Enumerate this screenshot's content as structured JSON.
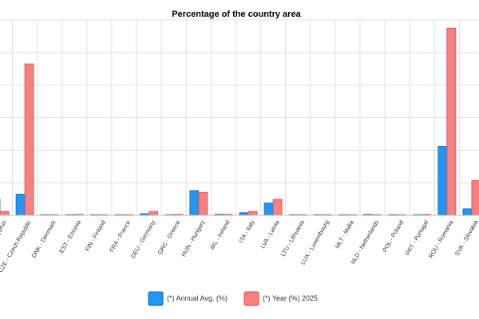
{
  "chart_data": {
    "type": "bar",
    "title": "Percentage of the country area",
    "categories": [
      "CYP - Cyprus",
      "CZE - Czech Republic",
      "DNK - Denmark",
      "EST - Estonia",
      "FIN - Finland",
      "FRA - France",
      "DEU - Germany",
      "GRC - Greece",
      "HUN - Hungary",
      "IRL - Ireland",
      "ITA - Italy",
      "LVA - Latvia",
      "LTU - Lithuania",
      "LUX - Luxembourg",
      "MLT - Malta",
      "NLD - Netherlands",
      "POL - Poland",
      "PRT - Portugal",
      "ROU - Romania",
      "SVK - Slovakia"
    ],
    "series": [
      {
        "name": "(*) Annual Avg. (%)",
        "color": "#2196f3",
        "values": [
          0.05,
          0.065,
          0.001,
          0.002,
          0.002,
          0.002,
          0.005,
          0.002,
          0.076,
          0.003,
          0.008,
          0.038,
          0.001,
          0.001,
          0.001,
          0.003,
          0.001,
          0.002,
          0.212,
          0.02
        ]
      },
      {
        "name": "(*) Year (%) 2025",
        "color": "#f88080",
        "values": [
          0.012,
          0.465,
          0.001,
          0.003,
          0.002,
          0.002,
          0.012,
          0.003,
          0.07,
          0.003,
          0.012,
          0.049,
          0.001,
          0.001,
          0.001,
          0.002,
          0.001,
          0.003,
          0.575,
          0.107
        ]
      }
    ],
    "ylim": [
      0,
      0.6
    ],
    "grid": true,
    "legend_position": "bottom"
  }
}
